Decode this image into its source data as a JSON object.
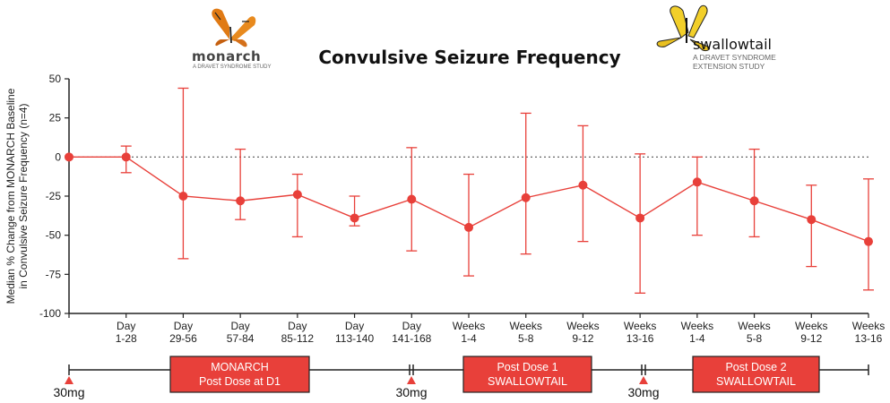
{
  "logos": {
    "monarch": {
      "name": "monarch",
      "subtitle": "A DRAVET SYNDROME STUDY"
    },
    "swallowtail": {
      "name": "swallowtail",
      "subtitle_line1": "A DRAVET SYNDROME",
      "subtitle_line2": "EXTENSION STUDY"
    }
  },
  "chart_data": {
    "type": "line",
    "title": "Convulsive Seizure Frequency",
    "ylabel_line1": "Median % Change from MONARCH Baseline",
    "ylabel_line2": "in Convulsive Seizure Frequency (n=4)",
    "ylim": [
      -100,
      50
    ],
    "yticks": [
      50,
      25,
      0,
      -25,
      -50,
      -75,
      -100
    ],
    "reference_line": 0,
    "color": "#e8403a",
    "x_labels": [
      [
        "",
        ""
      ],
      [
        "Day",
        "1-28"
      ],
      [
        "Day",
        "29-56"
      ],
      [
        "Day",
        "57-84"
      ],
      [
        "Day",
        "85-112"
      ],
      [
        "Day",
        "113-140"
      ],
      [
        "Day",
        "141-168"
      ],
      [
        "Weeks",
        "1-4"
      ],
      [
        "Weeks",
        "5-8"
      ],
      [
        "Weeks",
        "9-12"
      ],
      [
        "Weeks",
        "13-16"
      ],
      [
        "Weeks",
        "1-4"
      ],
      [
        "Weeks",
        "5-8"
      ],
      [
        "Weeks",
        "9-12"
      ],
      [
        "Weeks",
        "13-16"
      ]
    ],
    "values": [
      0,
      0,
      -25,
      -28,
      -24,
      -39,
      -27,
      -45,
      -26,
      -18,
      -39,
      -16,
      -28,
      -40,
      -54
    ],
    "error_low": [
      0,
      -10,
      -65,
      -40,
      -51,
      -44,
      -60,
      -76,
      -62,
      -54,
      -87,
      -50,
      -51,
      -70,
      -85
    ],
    "error_high": [
      0,
      7,
      44,
      5,
      -11,
      -25,
      6,
      -11,
      28,
      20,
      2,
      0,
      5,
      -18,
      -14
    ]
  },
  "timeline": {
    "phases": [
      {
        "line1": "MONARCH",
        "line2": "Post Dose at D1"
      },
      {
        "line1": "Post Dose 1",
        "line2": "SWALLOWTAIL"
      },
      {
        "line1": "Post Dose 2",
        "line2": "SWALLOWTAIL"
      }
    ],
    "doses": [
      "30mg",
      "30mg",
      "30mg"
    ],
    "phase_color": "#e8403a",
    "marker_color": "#e8403a"
  }
}
